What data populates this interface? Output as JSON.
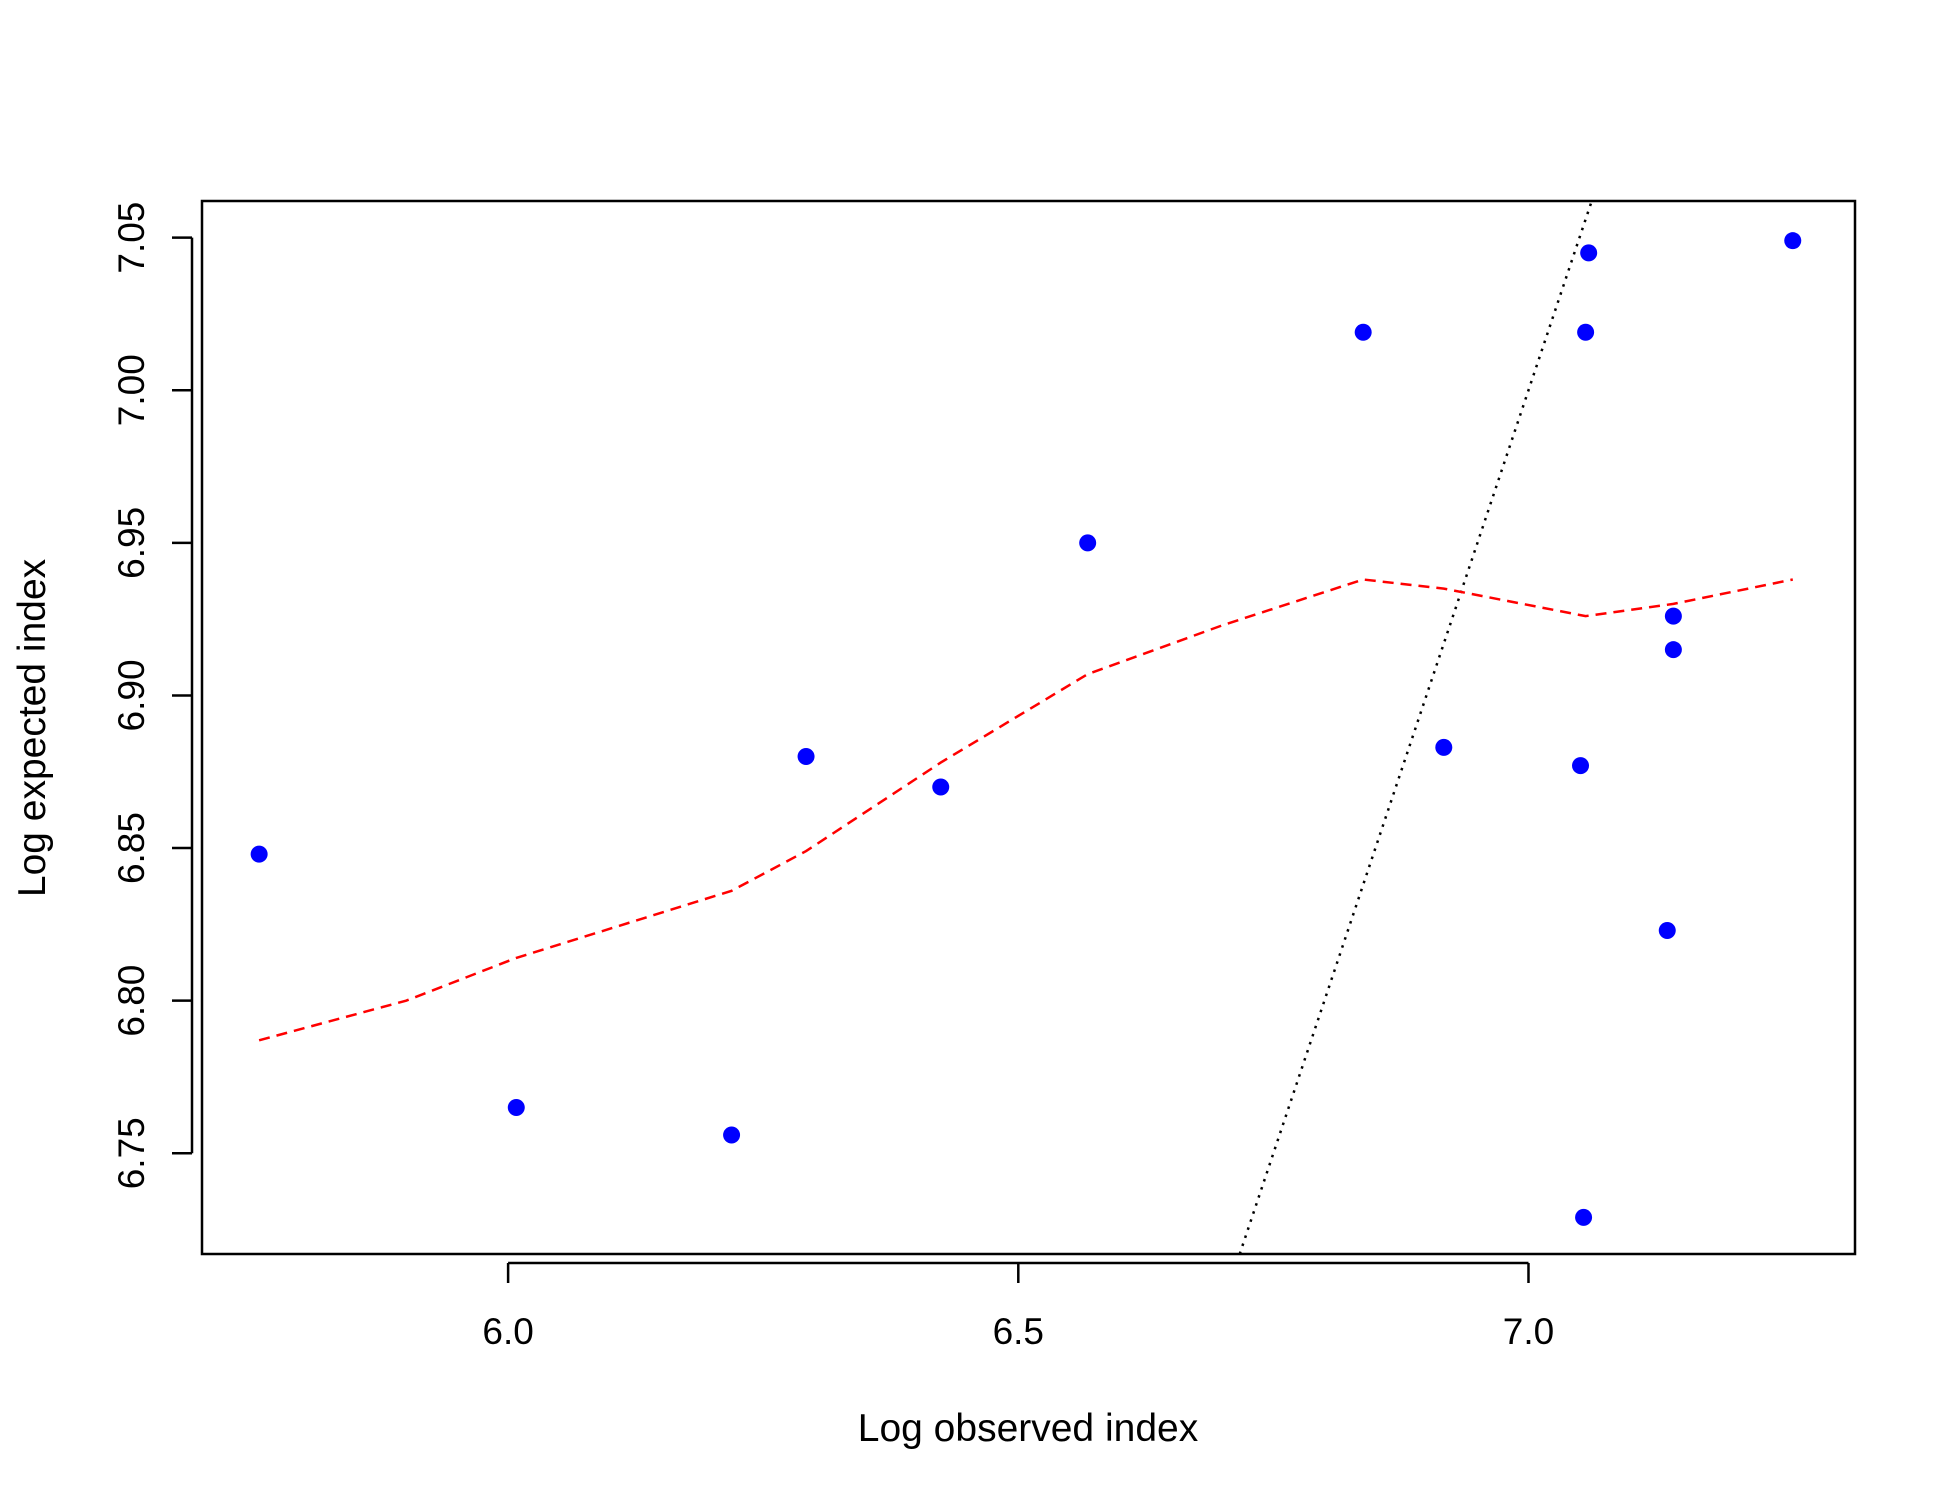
{
  "chart_data": {
    "type": "scatter",
    "title": "",
    "xlabel": "Log observed index",
    "ylabel": "Log expected index",
    "xlim": [
      5.7,
      7.32
    ],
    "ylim": [
      6.717,
      7.062
    ],
    "x_ticks": [
      6.0,
      6.5,
      7.0
    ],
    "x_tick_labels": [
      "6.0",
      "6.5",
      "7.0"
    ],
    "y_ticks": [
      6.75,
      6.8,
      6.85,
      6.9,
      6.95,
      7.0,
      7.05
    ],
    "y_tick_labels": [
      "6.75",
      "6.80",
      "6.85",
      "6.90",
      "6.95",
      "7.00",
      "7.05"
    ],
    "grid": false,
    "legend": "none",
    "points": {
      "color": "#0000ff",
      "x": [
        5.756,
        6.008,
        6.219,
        6.292,
        6.424,
        6.568,
        6.838,
        6.917,
        7.051,
        7.054,
        7.056,
        7.059,
        7.136,
        7.142,
        7.142,
        7.259
      ],
      "y": [
        6.848,
        6.765,
        6.756,
        6.88,
        6.87,
        6.95,
        7.019,
        6.883,
        6.877,
        6.729,
        7.019,
        7.045,
        6.823,
        6.926,
        6.915,
        7.049
      ]
    },
    "smooth_line": {
      "color": "#ff0000",
      "style": "dashed",
      "x": [
        5.756,
        5.9,
        6.008,
        6.219,
        6.292,
        6.424,
        6.568,
        6.7,
        6.838,
        6.917,
        7.056,
        7.142,
        7.259
      ],
      "y": [
        6.787,
        6.8,
        6.814,
        6.836,
        6.849,
        6.878,
        6.907,
        6.923,
        6.938,
        6.935,
        6.926,
        6.93,
        6.938
      ]
    },
    "reference_line": {
      "color": "#000000",
      "style": "dotted",
      "slope": 1,
      "intercept": 0
    }
  }
}
